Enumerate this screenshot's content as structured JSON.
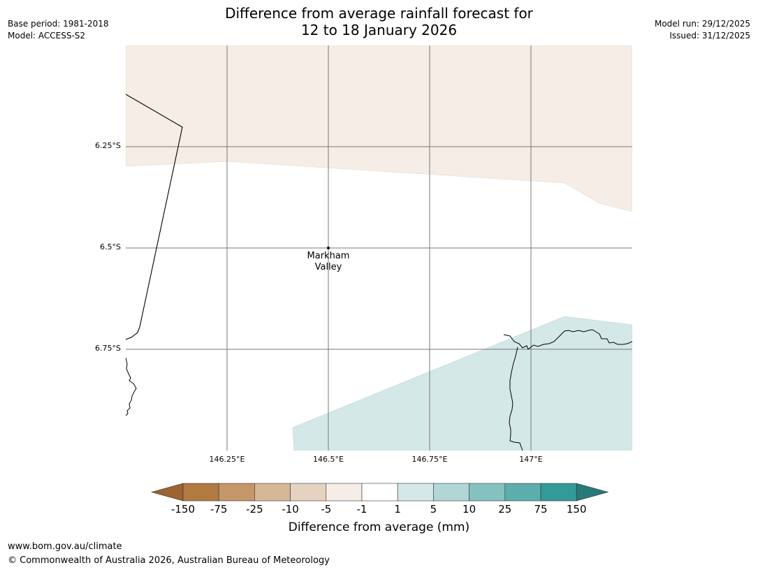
{
  "title": {
    "line1": "Difference from average rainfall forecast for",
    "line2": "12 to 18 January 2026"
  },
  "meta_left": {
    "base_period": "Base period: 1981-2018",
    "model": "Model: ACCESS-S2"
  },
  "meta_right": {
    "model_run": "Model run: 29/12/2025",
    "issued": "Issued: 31/12/2025"
  },
  "map": {
    "latitude_labels": [
      "6.25°S",
      "6.5°S",
      "6.75°S"
    ],
    "longitude_labels": [
      "146.25°E",
      "146.5°E",
      "146.75°E",
      "147°E"
    ],
    "place": {
      "name_line1": "Markham",
      "name_line2": "Valley"
    }
  },
  "colorbar": {
    "ticks": [
      "-150",
      "-75",
      "-25",
      "-10",
      "-5",
      "-1",
      "1",
      "5",
      "10",
      "25",
      "75",
      "150"
    ],
    "colors": [
      "#9b6430",
      "#b07a40",
      "#c4966a",
      "#d6b796",
      "#e6d2c0",
      "#f5ede6",
      "#ffffff",
      "#d4e8e7",
      "#b0d6d6",
      "#84c2c0",
      "#5caead",
      "#339a98",
      "#267a78"
    ],
    "label": "Difference from average (mm)"
  },
  "footer": {
    "url": "www.bom.gov.au/climate",
    "copyright": "© Commonwealth of Australia 2026, Australian Bureau of Meteorology"
  }
}
